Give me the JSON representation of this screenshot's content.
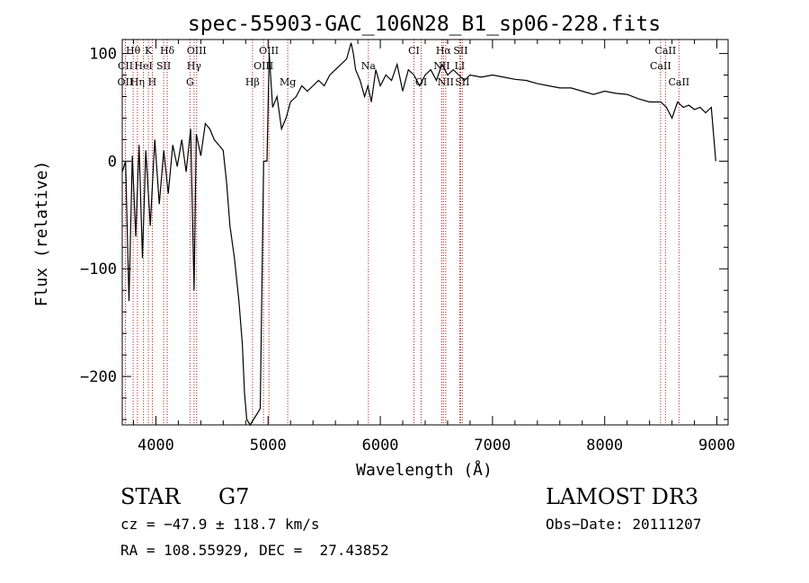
{
  "chart_data": {
    "type": "line",
    "title": "spec-55903-GAC_106N28_B1_sp06-228.fits",
    "xlabel": "Wavelength (Å)",
    "ylabel": "Flux (relative)",
    "xlim": [
      3700,
      9100
    ],
    "ylim": [
      -245,
      113
    ],
    "xticks": [
      4000,
      5000,
      6000,
      7000,
      8000,
      9000
    ],
    "yticks": [
      -200,
      -100,
      0,
      100
    ],
    "grid": false,
    "series": [
      {
        "name": "flux",
        "x": [
          3700,
          3730,
          3760,
          3790,
          3820,
          3850,
          3880,
          3910,
          3950,
          3990,
          4030,
          4070,
          4110,
          4150,
          4190,
          4230,
          4270,
          4310,
          4340,
          4360,
          4400,
          4440,
          4480,
          4520,
          4560,
          4600,
          4630,
          4660,
          4700,
          4740,
          4770,
          4790,
          4810,
          4840,
          4870,
          4900,
          4930,
          4960,
          4990,
          5010,
          5040,
          5080,
          5120,
          5160,
          5200,
          5250,
          5300,
          5350,
          5400,
          5450,
          5500,
          5550,
          5600,
          5650,
          5700,
          5740,
          5760,
          5780,
          5820,
          5860,
          5890,
          5920,
          5960,
          6000,
          6050,
          6100,
          6150,
          6200,
          6250,
          6300,
          6350,
          6400,
          6450,
          6500,
          6550,
          6600,
          6650,
          6700,
          6750,
          6800,
          6900,
          7000,
          7100,
          7200,
          7300,
          7400,
          7500,
          7600,
          7700,
          7800,
          7900,
          8000,
          8100,
          8200,
          8300,
          8400,
          8500,
          8550,
          8600,
          8650,
          8700,
          8750,
          8800,
          8850,
          8900,
          8950,
          8990
        ],
        "y": [
          -10,
          0,
          -130,
          5,
          -70,
          15,
          -90,
          10,
          -60,
          20,
          -40,
          10,
          -30,
          15,
          -5,
          20,
          -10,
          30,
          -120,
          25,
          5,
          35,
          30,
          20,
          15,
          10,
          -20,
          -60,
          -90,
          -130,
          -170,
          -215,
          -240,
          -245,
          -240,
          -235,
          -230,
          0,
          0,
          100,
          50,
          60,
          30,
          40,
          55,
          60,
          70,
          65,
          70,
          75,
          70,
          80,
          85,
          90,
          95,
          110,
          100,
          85,
          75,
          60,
          70,
          55,
          85,
          70,
          80,
          75,
          90,
          65,
          85,
          80,
          70,
          80,
          85,
          75,
          90,
          80,
          85,
          80,
          75,
          80,
          78,
          80,
          78,
          76,
          75,
          72,
          70,
          68,
          68,
          65,
          62,
          65,
          63,
          62,
          58,
          55,
          55,
          50,
          40,
          55,
          50,
          52,
          48,
          50,
          45,
          50,
          0
        ]
      }
    ],
    "lines": [
      {
        "label": "Hθ",
        "x": 3797,
        "row": 1
      },
      {
        "label": "CII",
        "x": 3728,
        "row": 2
      },
      {
        "label": "OII",
        "x": 3727,
        "row": 3
      },
      {
        "label": "K",
        "x": 3933,
        "row": 1
      },
      {
        "label": "HeI",
        "x": 3889,
        "row": 2
      },
      {
        "label": "Hη",
        "x": 3835,
        "row": 3
      },
      {
        "label": "H",
        "x": 3968,
        "row": 3
      },
      {
        "label": "Hδ",
        "x": 4101,
        "row": 1
      },
      {
        "label": "SII",
        "x": 4069,
        "row": 2
      },
      {
        "label": "OIII",
        "x": 4363,
        "row": 1
      },
      {
        "label": "Hγ",
        "x": 4340,
        "row": 2
      },
      {
        "label": "G",
        "x": 4304,
        "row": 3
      },
      {
        "label": "Hβ",
        "x": 4861,
        "row": 3
      },
      {
        "label": "OIII",
        "x": 5007,
        "row": 1
      },
      {
        "label": "OIII",
        "x": 4959,
        "row": 2
      },
      {
        "label": "Mg",
        "x": 5175,
        "row": 3
      },
      {
        "label": "Na",
        "x": 5894,
        "row": 2
      },
      {
        "label": "CI",
        "x": 6300,
        "row": 1
      },
      {
        "label": "OI",
        "x": 6364,
        "row": 3
      },
      {
        "label": "Hα",
        "x": 6563,
        "row": 1
      },
      {
        "label": "NII",
        "x": 6548,
        "row": 2
      },
      {
        "label": "NII",
        "x": 6583,
        "row": 3
      },
      {
        "label": "SII",
        "x": 6716,
        "row": 1
      },
      {
        "label": "LI",
        "x": 6708,
        "row": 2
      },
      {
        "label": "SII",
        "x": 6731,
        "row": 3
      },
      {
        "label": "CaII",
        "x": 8542,
        "row": 1
      },
      {
        "label": "CaII",
        "x": 8498,
        "row": 2
      },
      {
        "label": "CaII",
        "x": 8662,
        "row": 3
      }
    ]
  },
  "info": {
    "class_label": "STAR",
    "subclass": "G7",
    "survey": "LAMOST DR3",
    "cz": "cz = −47.9 ± 118.7 km/s",
    "obs_date": "Obs−Date: 20111207",
    "radec": "RA = 108.55929, DEC =  27.43852"
  },
  "colors": {
    "spectrum": "#000000",
    "line_marker": "#b22222",
    "axis": "#000000",
    "background": "#ffffff"
  }
}
